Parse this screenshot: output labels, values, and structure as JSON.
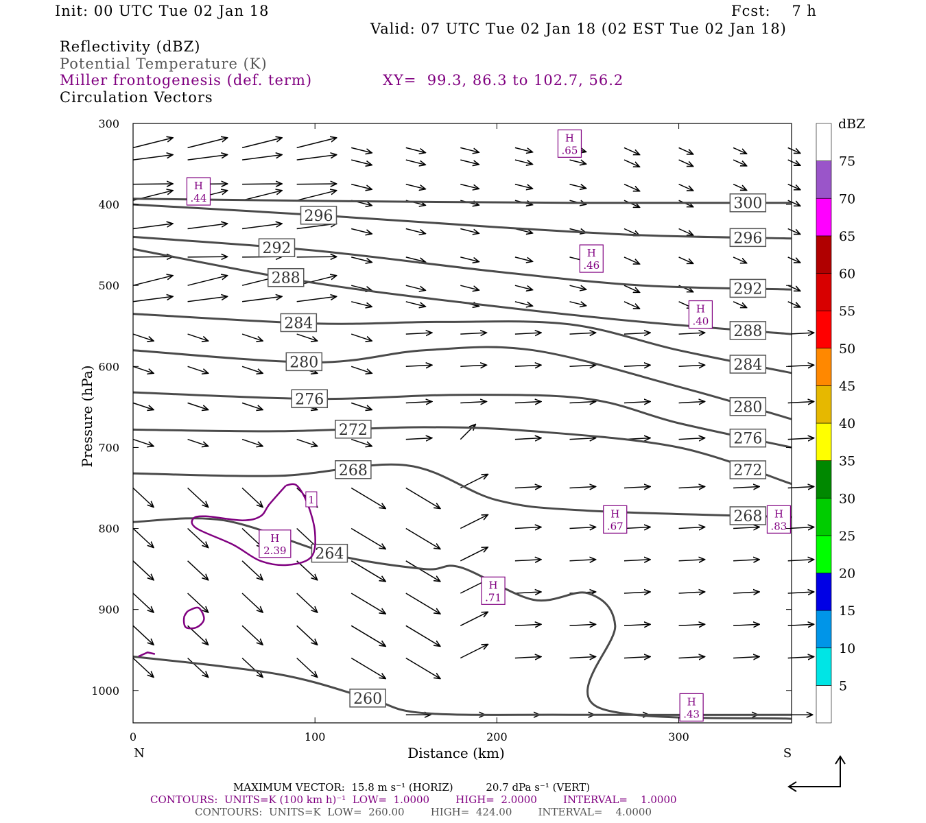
{
  "header": {
    "init": "Init: 00 UTC Tue 02 Jan 18",
    "fcst": "Fcst:    7 h",
    "valid": "Valid: 07 UTC Tue 02 Jan 18 (02 EST Tue 02 Jan 18)",
    "field1": "Reflectivity (dBZ)",
    "field2": "Potential Temperature (K)",
    "field3": "Miller frontogenesis (def. term)",
    "xy": "XY=  99.3, 86.3 to 102.7, 56.2",
    "field4": "Circulation Vectors"
  },
  "footer": {
    "line1": "MAXIMUM VECTOR:  15.8 m s⁻¹ (HORIZ)          20.7 dPa s⁻¹ (VERT)",
    "line2": "CONTOURS:  UNITS=K (100 km h)⁻¹  LOW=  1.0000        HIGH=  2.0000        INTERVAL=    1.0000",
    "line3": "CONTOURS:  UNITS=K  LOW=  260.00        HIGH=  424.00        INTERVAL=    4.0000"
  },
  "colors": {
    "theta": "#4a4a4a",
    "frontogenesis": "#800080",
    "vector": "#000000"
  },
  "chart_data": {
    "type": "cross-section",
    "xlabel": "Distance (km)",
    "ylabel": "Pressure (hPa)",
    "xlim": [
      0,
      362
    ],
    "ylim": [
      1040,
      300
    ],
    "x_ticks": [
      0,
      100,
      200,
      300
    ],
    "y_ticks": [
      300,
      400,
      500,
      600,
      700,
      800,
      900,
      1000
    ],
    "x_end_labels": {
      "left": "N",
      "right": "S"
    },
    "grid": false,
    "colorbar": {
      "label": "dBZ",
      "ticks": [
        5,
        10,
        15,
        20,
        25,
        30,
        35,
        40,
        45,
        50,
        55,
        60,
        65,
        70,
        75
      ],
      "colors": [
        "#ffffff",
        "#00e5e5",
        "#0095e8",
        "#0000e5",
        "#00ff00",
        "#00cc00",
        "#008800",
        "#ffff00",
        "#e6b800",
        "#ff8800",
        "#ff0000",
        "#d80000",
        "#b00000",
        "#ff00ff",
        "#9a55c9",
        "#ffffff"
      ]
    },
    "theta_contours": [
      {
        "label": "300",
        "x": [
          0,
          120,
          240,
          300,
          362
        ],
        "p": [
          393,
          396,
          398,
          398,
          398
        ],
        "label_x": 338
      },
      {
        "label": "296",
        "x": [
          0,
          100,
          200,
          280,
          362
        ],
        "p": [
          400,
          413,
          428,
          438,
          442
        ],
        "label_x": 102,
        "label_x2": 338
      },
      {
        "label": "292",
        "x": [
          0,
          100,
          200,
          280,
          362
        ],
        "p": [
          440,
          457,
          483,
          500,
          505
        ],
        "label_x": 79,
        "label_x2": 338
      },
      {
        "label": "288",
        "x": [
          0,
          100,
          200,
          280,
          362
        ],
        "p": [
          455,
          497,
          526,
          545,
          560
        ],
        "label_x": 84,
        "label_x2": 338
      },
      {
        "label": "284",
        "x": [
          0,
          100,
          170,
          240,
          300,
          362
        ],
        "p": [
          535,
          547,
          545,
          548,
          580,
          608
        ],
        "label_x": 91,
        "label_x2": 338
      },
      {
        "label": "280",
        "x": [
          0,
          100,
          160,
          220,
          300,
          362
        ],
        "p": [
          580,
          595,
          580,
          580,
          625,
          665
        ],
        "label_x": 94,
        "label_x2": 338
      },
      {
        "label": "276",
        "x": [
          0,
          100,
          180,
          250,
          300,
          362
        ],
        "p": [
          632,
          640,
          635,
          640,
          670,
          700
        ],
        "label_x": 97,
        "label_x2": 338
      },
      {
        "label": "272",
        "x": [
          0,
          80,
          160,
          220,
          300,
          362
        ],
        "p": [
          678,
          680,
          675,
          680,
          700,
          745
        ],
        "label_x": 121,
        "label_x2": 338
      },
      {
        "label": "268",
        "x": [
          0,
          80,
          150,
          200,
          250,
          362
        ],
        "p": [
          732,
          735,
          722,
          765,
          778,
          786
        ],
        "label_x": 121,
        "label_x2": 338
      },
      {
        "label": "264",
        "x": [
          0,
          50,
          110,
          160,
          180,
          220,
          250,
          265,
          255,
          362
        ],
        "p": [
          792,
          790,
          832,
          850,
          848,
          888,
          880,
          920,
          1020,
          1035
        ],
        "label_x": 108
      },
      {
        "label": "260",
        "x": [
          0,
          80,
          130,
          160,
          240,
          362
        ],
        "p": [
          958,
          980,
          1010,
          1028,
          1030,
          1030
        ],
        "label_x": 129
      }
    ],
    "frontogenesis_contours": [
      {
        "label": "1",
        "value": 1.0
      }
    ],
    "frontogenesis_maxima": [
      {
        "label": "H",
        "value": ".65",
        "x": 240,
        "p": 324
      },
      {
        "label": "H",
        "value": ".44",
        "x": 36,
        "p": 383
      },
      {
        "label": "H",
        "value": ".46",
        "x": 252,
        "p": 466
      },
      {
        "label": "H",
        "value": ".40",
        "x": 312,
        "p": 535
      },
      {
        "label": "H",
        "value": "2.39",
        "x": 78,
        "p": 818
      },
      {
        "label": "H",
        "value": ".67",
        "x": 265,
        "p": 788
      },
      {
        "label": "H",
        "value": ".83",
        "x": 355,
        "p": 788
      },
      {
        "label": "H",
        "value": ".71",
        "x": 198,
        "p": 876
      },
      {
        "label": "H",
        "value": ".43",
        "x": 307,
        "p": 1020
      }
    ],
    "max_vector": {
      "horiz_m_s": 15.8,
      "vert_dPa_s": 20.7
    }
  }
}
